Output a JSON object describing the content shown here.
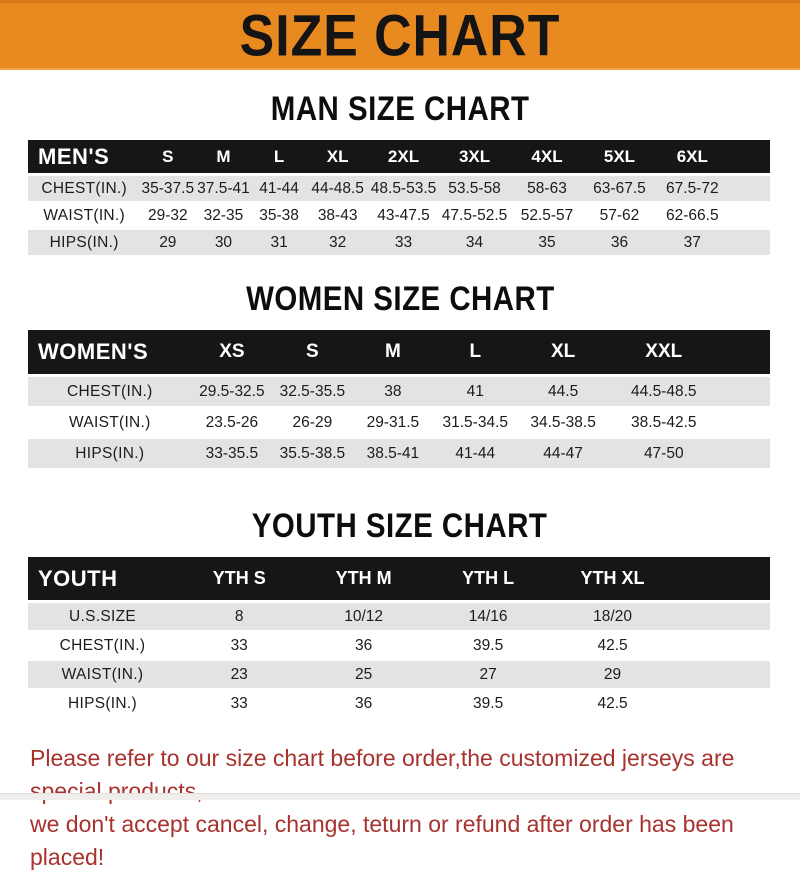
{
  "banner": {
    "title": "SIZE CHART"
  },
  "sections": [
    {
      "heading": "MAN SIZE CHART",
      "table": {
        "label": "MEN'S",
        "columns": [
          "S",
          "M",
          "L",
          "XL",
          "2XL",
          "3XL",
          "4XL",
          "5XL",
          "6XL"
        ],
        "rows": [
          {
            "label": "CHEST(IN.)",
            "values": [
              "35-37.5",
              "37.5-41",
              "41-44",
              "44-48.5",
              "48.5-53.5",
              "53.5-58",
              "58-63",
              "63-67.5",
              "67.5-72"
            ]
          },
          {
            "label": "WAIST(IN.)",
            "values": [
              "29-32",
              "32-35",
              "35-38",
              "38-43",
              "43-47.5",
              "47.5-52.5",
              "52.5-57",
              "57-62",
              "62-66.5"
            ]
          },
          {
            "label": "HIPS(IN.)",
            "values": [
              "29",
              "30",
              "31",
              "32",
              "33",
              "34",
              "35",
              "36",
              "37"
            ]
          }
        ]
      }
    },
    {
      "heading": "WOMEN SIZE CHART",
      "table": {
        "label": "WOMEN'S",
        "columns": [
          "XS",
          "S",
          "M",
          "L",
          "XL",
          "XXL"
        ],
        "rows": [
          {
            "label": "CHEST(IN.)",
            "values": [
              "29.5-32.5",
              "32.5-35.5",
              "38",
              "41",
              "44.5",
              "44.5-48.5"
            ]
          },
          {
            "label": "WAIST(IN.)",
            "values": [
              "23.5-26",
              "26-29",
              "29-31.5",
              "31.5-34.5",
              "34.5-38.5",
              "38.5-42.5"
            ]
          },
          {
            "label": "HIPS(IN.)",
            "values": [
              "33-35.5",
              "35.5-38.5",
              "38.5-41",
              "41-44",
              "44-47",
              "47-50"
            ]
          }
        ]
      }
    },
    {
      "heading": "YOUTH SIZE CHART",
      "table": {
        "label": "YOUTH",
        "columns": [
          "YTH S",
          "YTH M",
          "YTH L",
          "YTH XL"
        ],
        "rows": [
          {
            "label": "U.S.SIZE",
            "values": [
              "8",
              "10/12",
              "14/16",
              "18/20"
            ]
          },
          {
            "label": "CHEST(IN.)",
            "values": [
              "33",
              "36",
              "39.5",
              "42.5"
            ]
          },
          {
            "label": "WAIST(IN.)",
            "values": [
              "23",
              "25",
              "27",
              "29"
            ]
          },
          {
            "label": "HIPS(IN.)",
            "values": [
              "33",
              "36",
              "39.5",
              "42.5"
            ]
          }
        ]
      }
    }
  ],
  "footer": {
    "line1": "Please refer to our size chart before order,the customized jerseys are special products,",
    "line2": "we don't accept cancel, change, teturn or refund after order has been placed!"
  },
  "colors": {
    "banner_orange": "#e98a21",
    "header_black": "#161616",
    "row_gray": "#e3e3e3",
    "note_red": "#a8322e"
  }
}
